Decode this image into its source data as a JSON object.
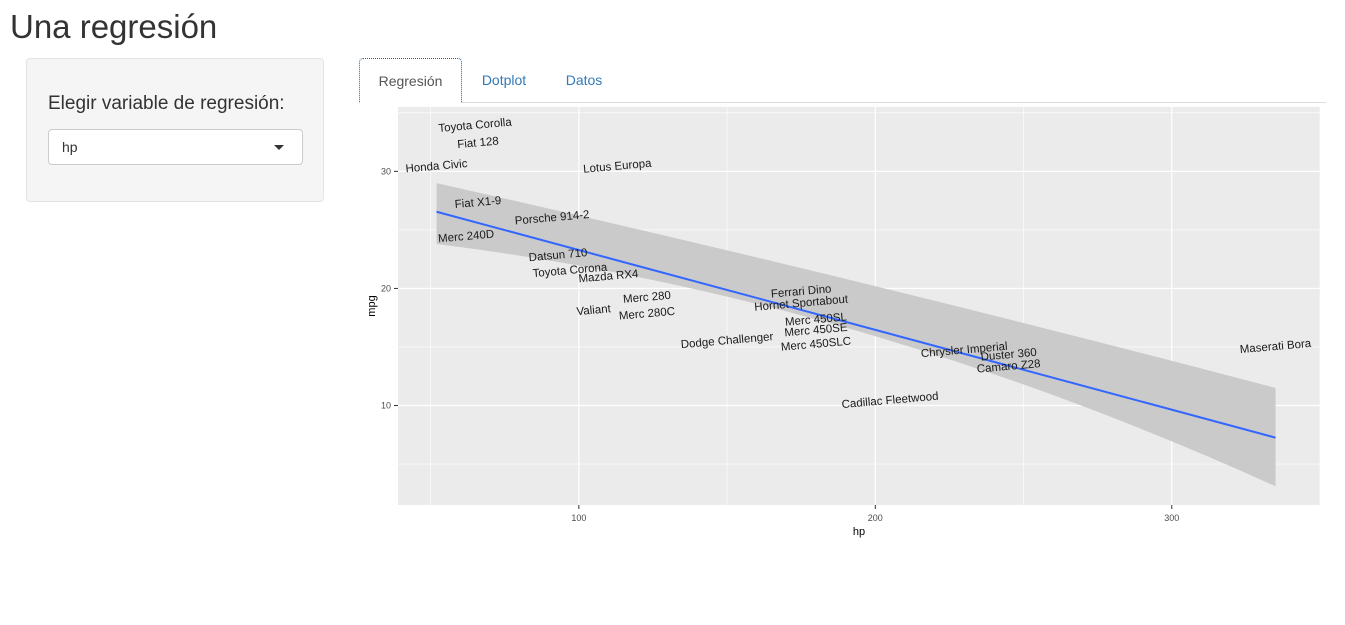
{
  "page": {
    "title": "Una regresión"
  },
  "sidebar": {
    "label": "Elegir variable de regresión:",
    "select": {
      "value": "hp"
    }
  },
  "tabs": [
    {
      "label": "Regresión",
      "active": true
    },
    {
      "label": "Dotplot",
      "active": false
    },
    {
      "label": "Datos",
      "active": false
    }
  ],
  "colors": {
    "panel_bg": "#ebebeb",
    "grid": "#ffffff",
    "fit_line": "#3366ff",
    "ribbon": "#c8c8c8",
    "link": "#337ab7"
  },
  "chart_data": {
    "type": "scatter",
    "xlabel": "hp",
    "ylabel": "mpg",
    "xlim": [
      39,
      350
    ],
    "ylim": [
      1.5,
      35.5
    ],
    "x_ticks": [
      100,
      200,
      300
    ],
    "y_ticks": [
      10,
      20,
      30
    ],
    "x_tick_labels": [
      "100",
      "200",
      "300"
    ],
    "y_tick_labels": [
      "10",
      "20",
      "30"
    ],
    "point_style": "text labels",
    "points": [
      {
        "label": "Toyota Corolla",
        "hp": 65,
        "mpg": 33.9
      },
      {
        "label": "Fiat 128",
        "hp": 66,
        "mpg": 32.4
      },
      {
        "label": "Honda Civic",
        "hp": 52,
        "mpg": 30.4
      },
      {
        "label": "Lotus Europa",
        "hp": 113,
        "mpg": 30.4
      },
      {
        "label": "Fiat X1-9",
        "hp": 66,
        "mpg": 27.3
      },
      {
        "label": "Porsche 914-2",
        "hp": 91,
        "mpg": 26.0
      },
      {
        "label": "Merc 240D",
        "hp": 62,
        "mpg": 24.4
      },
      {
        "label": "Datsun 710",
        "hp": 93,
        "mpg": 22.8
      },
      {
        "label": "Toyota Corona",
        "hp": 97,
        "mpg": 21.5
      },
      {
        "label": "Mazda RX4",
        "hp": 110,
        "mpg": 21.0
      },
      {
        "label": "Merc 280",
        "hp": 123,
        "mpg": 19.2
      },
      {
        "label": "Valiant",
        "hp": 105,
        "mpg": 18.1
      },
      {
        "label": "Merc 280C",
        "hp": 123,
        "mpg": 17.8
      },
      {
        "label": "Ferrari Dino",
        "hp": 175,
        "mpg": 19.7
      },
      {
        "label": "Hornet Sportabout",
        "hp": 175,
        "mpg": 18.7
      },
      {
        "label": "Merc 450SL",
        "hp": 180,
        "mpg": 17.3
      },
      {
        "label": "Merc 450SE",
        "hp": 180,
        "mpg": 16.4
      },
      {
        "label": "Dodge Challenger",
        "hp": 150,
        "mpg": 15.5
      },
      {
        "label": "Merc 450SLC",
        "hp": 180,
        "mpg": 15.2
      },
      {
        "label": "Chrysler Imperial",
        "hp": 230,
        "mpg": 14.7
      },
      {
        "label": "Duster 360",
        "hp": 245,
        "mpg": 14.3
      },
      {
        "label": "Camaro Z28",
        "hp": 245,
        "mpg": 13.3
      },
      {
        "label": "Maserati Bora",
        "hp": 335,
        "mpg": 15.0
      },
      {
        "label": "Cadillac Fleetwood",
        "hp": 205,
        "mpg": 10.4
      }
    ],
    "regression": {
      "method": "lm",
      "x_range": [
        52,
        335
      ],
      "intercept": 30.1,
      "slope": -0.0682,
      "ci_at_min": [
        23.8,
        29.0
      ],
      "ci_at_center": [
        19.6,
        20.7
      ],
      "ci_at_max": [
        3.1,
        11.5
      ]
    }
  }
}
